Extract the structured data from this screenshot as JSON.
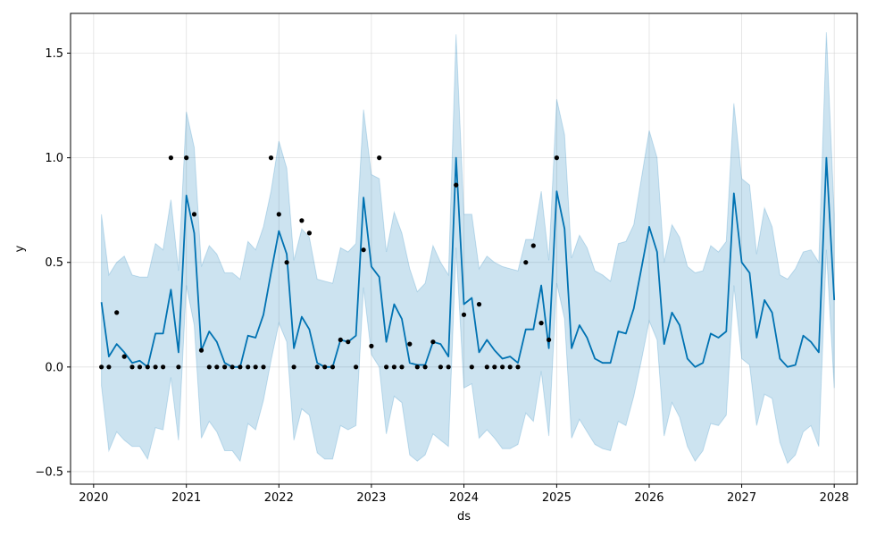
{
  "chart_data": {
    "type": "line",
    "xlabel": "ds",
    "ylabel": "y",
    "xlim": [
      "2019-10-02",
      "2028-04-01"
    ],
    "ylim": [
      -0.56,
      1.69
    ],
    "x_ticks": [
      "2020",
      "2021",
      "2022",
      "2023",
      "2024",
      "2025",
      "2026",
      "2027",
      "2028"
    ],
    "y_ticks": [
      "1.5",
      "1.0",
      "0.5",
      "0.0",
      "−0.5"
    ],
    "y_tick_values": [
      1.5,
      1.0,
      0.5,
      0.0,
      -0.5
    ],
    "grid": true,
    "colors": {
      "forecast": "#0072B2",
      "uncertainty": "#0072B2",
      "observed": "#000000",
      "grid": "#cccccc"
    },
    "series": [
      {
        "kind": "observed-points",
        "x": [
          "2020-02",
          "2020-03",
          "2020-04",
          "2020-05",
          "2020-06",
          "2020-07",
          "2020-08",
          "2020-09",
          "2020-10",
          "2020-11",
          "2020-12",
          "2021-01",
          "2021-02",
          "2021-03",
          "2021-04",
          "2021-05",
          "2021-06",
          "2021-07",
          "2021-08",
          "2021-09",
          "2021-10",
          "2021-11",
          "2021-12",
          "2022-01",
          "2022-02",
          "2022-03",
          "2022-04",
          "2022-05",
          "2022-06",
          "2022-07",
          "2022-08",
          "2022-09",
          "2022-10",
          "2022-11",
          "2022-12",
          "2023-01",
          "2023-02",
          "2023-03",
          "2023-04",
          "2023-05",
          "2023-06",
          "2023-07",
          "2023-08",
          "2023-09",
          "2023-10",
          "2023-11",
          "2023-12",
          "2024-01",
          "2024-02",
          "2024-03",
          "2024-04",
          "2024-05",
          "2024-06",
          "2024-07",
          "2024-08",
          "2024-09",
          "2024-10",
          "2024-11",
          "2024-12",
          "2025-01"
        ],
        "y": [
          0,
          0,
          0.26,
          0.05,
          0,
          0,
          0,
          0,
          0,
          1.0,
          0,
          1.0,
          0.73,
          0.08,
          0,
          0,
          0,
          0,
          0,
          0,
          0,
          0,
          1.0,
          0.73,
          0.5,
          0,
          0.7,
          0.64,
          0,
          0,
          0,
          0.13,
          0.12,
          0,
          0.56,
          0.1,
          1.0,
          0,
          0,
          0,
          0.11,
          0,
          0,
          0.12,
          0,
          0,
          0.87,
          0.25,
          0,
          0.3,
          0,
          0,
          0,
          0,
          0,
          0.5,
          0.58,
          0.21,
          0.13,
          1.0
        ]
      },
      {
        "kind": "forecast-line",
        "x": [
          "2020-02",
          "2020-03",
          "2020-04",
          "2020-05",
          "2020-06",
          "2020-07",
          "2020-08",
          "2020-09",
          "2020-10",
          "2020-11",
          "2020-12",
          "2021-01",
          "2021-02",
          "2021-03",
          "2021-04",
          "2021-05",
          "2021-06",
          "2021-07",
          "2021-08",
          "2021-09",
          "2021-10",
          "2021-11",
          "2021-12",
          "2022-01",
          "2022-02",
          "2022-03",
          "2022-04",
          "2022-05",
          "2022-06",
          "2022-07",
          "2022-08",
          "2022-09",
          "2022-10",
          "2022-11",
          "2022-12",
          "2023-01",
          "2023-02",
          "2023-03",
          "2023-04",
          "2023-05",
          "2023-06",
          "2023-07",
          "2023-08",
          "2023-09",
          "2023-10",
          "2023-11",
          "2023-12",
          "2024-01",
          "2024-02",
          "2024-03",
          "2024-04",
          "2024-05",
          "2024-06",
          "2024-07",
          "2024-08",
          "2024-09",
          "2024-10",
          "2024-11",
          "2024-12",
          "2025-01",
          "2025-02",
          "2025-03",
          "2025-04",
          "2025-05",
          "2025-06",
          "2025-07",
          "2025-08",
          "2025-09",
          "2025-10",
          "2025-11",
          "2025-12",
          "2026-01",
          "2026-02",
          "2026-03",
          "2026-04",
          "2026-05",
          "2026-06",
          "2026-07",
          "2026-08",
          "2026-09",
          "2026-10",
          "2026-11",
          "2026-12",
          "2027-01",
          "2027-02",
          "2027-03",
          "2027-04",
          "2027-05",
          "2027-06",
          "2027-07",
          "2027-08",
          "2027-09",
          "2027-10",
          "2027-11",
          "2027-12",
          "2028-01"
        ],
        "yhat": [
          0.31,
          0.05,
          0.11,
          0.07,
          0.02,
          0.03,
          0.0,
          0.16,
          0.16,
          0.37,
          0.07,
          0.82,
          0.64,
          0.08,
          0.17,
          0.12,
          0.02,
          0.0,
          0.0,
          0.15,
          0.14,
          0.25,
          0.45,
          0.65,
          0.54,
          0.09,
          0.24,
          0.18,
          0.02,
          0.0,
          0.0,
          0.13,
          0.12,
          0.15,
          0.81,
          0.48,
          0.43,
          0.12,
          0.3,
          0.23,
          0.02,
          0.01,
          0.01,
          0.12,
          0.11,
          0.05,
          1.0,
          0.3,
          0.33,
          0.07,
          0.13,
          0.08,
          0.04,
          0.05,
          0.02,
          0.18,
          0.18,
          0.39,
          0.09,
          0.84,
          0.66,
          0.09,
          0.2,
          0.14,
          0.04,
          0.02,
          0.02,
          0.17,
          0.16,
          0.28,
          0.47,
          0.67,
          0.55,
          0.11,
          0.26,
          0.2,
          0.04,
          0.0,
          0.02,
          0.16,
          0.14,
          0.17,
          0.83,
          0.5,
          0.45,
          0.14,
          0.32,
          0.26,
          0.04,
          0.0,
          0.01,
          0.15,
          0.12,
          0.07,
          1.0,
          0.32
        ],
        "upper": [
          0.73,
          0.44,
          0.5,
          0.53,
          0.44,
          0.43,
          0.43,
          0.59,
          0.56,
          0.8,
          0.46,
          1.22,
          1.05,
          0.48,
          0.58,
          0.54,
          0.45,
          0.45,
          0.42,
          0.6,
          0.56,
          0.67,
          0.84,
          1.08,
          0.95,
          0.51,
          0.66,
          0.62,
          0.42,
          0.41,
          0.4,
          0.57,
          0.55,
          0.59,
          1.23,
          0.92,
          0.9,
          0.55,
          0.74,
          0.64,
          0.47,
          0.36,
          0.4,
          0.58,
          0.5,
          0.44,
          1.59,
          0.73,
          0.73,
          0.47,
          0.53,
          0.5,
          0.48,
          0.47,
          0.46,
          0.61,
          0.61,
          0.84,
          0.51,
          1.28,
          1.11,
          0.52,
          0.63,
          0.57,
          0.46,
          0.44,
          0.41,
          0.59,
          0.6,
          0.68,
          0.9,
          1.13,
          1.0,
          0.5,
          0.68,
          0.62,
          0.48,
          0.45,
          0.46,
          0.58,
          0.55,
          0.6,
          1.26,
          0.9,
          0.87,
          0.54,
          0.76,
          0.67,
          0.44,
          0.42,
          0.47,
          0.55,
          0.56,
          0.5,
          1.6,
          0.73
        ],
        "lower": [
          -0.09,
          -0.4,
          -0.31,
          -0.35,
          -0.38,
          -0.38,
          -0.44,
          -0.29,
          -0.3,
          -0.05,
          -0.35,
          0.39,
          0.2,
          -0.34,
          -0.26,
          -0.31,
          -0.4,
          -0.4,
          -0.45,
          -0.27,
          -0.3,
          -0.16,
          0.03,
          0.21,
          0.12,
          -0.35,
          -0.2,
          -0.23,
          -0.41,
          -0.44,
          -0.44,
          -0.28,
          -0.3,
          -0.28,
          0.38,
          0.06,
          0.0,
          -0.32,
          -0.14,
          -0.17,
          -0.42,
          -0.45,
          -0.42,
          -0.32,
          -0.35,
          -0.38,
          0.57,
          -0.1,
          -0.08,
          -0.34,
          -0.3,
          -0.34,
          -0.39,
          -0.39,
          -0.37,
          -0.22,
          -0.26,
          -0.02,
          -0.33,
          0.4,
          0.23,
          -0.34,
          -0.25,
          -0.31,
          -0.37,
          -0.39,
          -0.4,
          -0.26,
          -0.28,
          -0.14,
          0.03,
          0.22,
          0.13,
          -0.33,
          -0.17,
          -0.24,
          -0.38,
          -0.45,
          -0.4,
          -0.27,
          -0.28,
          -0.23,
          0.39,
          0.04,
          0.01,
          -0.28,
          -0.13,
          -0.15,
          -0.36,
          -0.46,
          -0.42,
          -0.31,
          -0.28,
          -0.38,
          0.56,
          -0.1
        ]
      }
    ]
  }
}
